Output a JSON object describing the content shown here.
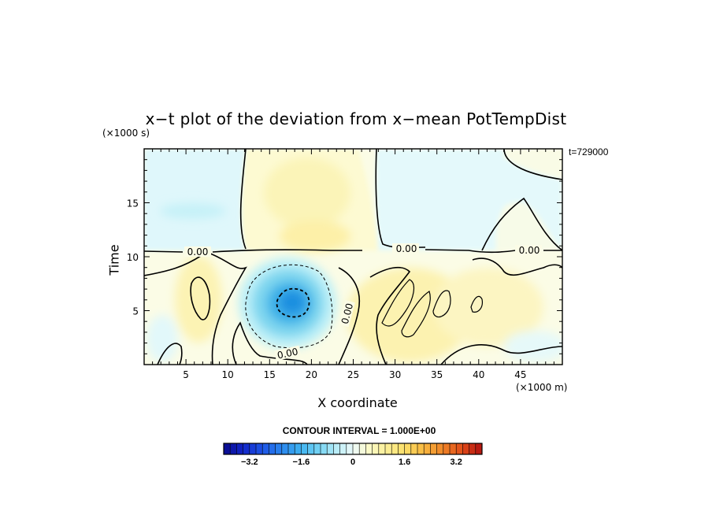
{
  "chart_data": {
    "type": "heatmap",
    "title": "x−t plot of the deviation from x−mean PotTempDist",
    "xlabel": "X coordinate",
    "ylabel": "Time",
    "x_unit": "(×1000 m)",
    "y_unit": "(×1000 s)",
    "time_label": "t=729000",
    "xlim": [
      0,
      50
    ],
    "ylim": [
      0,
      20
    ],
    "x_ticks": [
      5,
      10,
      15,
      20,
      25,
      30,
      35,
      40,
      45
    ],
    "y_ticks": [
      5,
      10,
      15
    ],
    "contour_interval": "CONTOUR INTERVAL = 1.000E+00",
    "contour_labels": [
      "0.00",
      "0.00",
      "0.00",
      "0.00",
      "0.00"
    ],
    "colorbar": {
      "min": -4,
      "max": 4,
      "tick_labels": [
        "−3.2",
        "−1.6",
        "0",
        "1.6",
        "3.2"
      ],
      "tick_values": [
        -3.2,
        -1.6,
        0,
        1.6,
        3.2
      ]
    },
    "features": [
      {
        "kind": "cold-anomaly",
        "center_x": 17.5,
        "center_t": 6,
        "min_value": -3
      },
      {
        "kind": "warm-anomaly",
        "center_x": 20,
        "center_t": 16,
        "value": 0.4
      },
      {
        "kind": "warm-anomaly",
        "center_x": 32,
        "center_t": 5,
        "value": 1.2
      }
    ]
  }
}
